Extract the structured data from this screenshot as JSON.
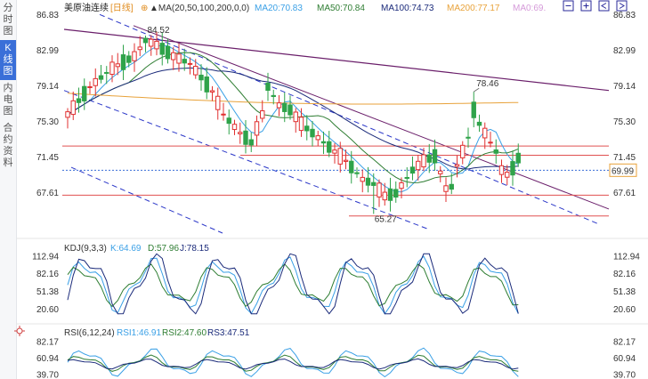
{
  "sidebar": {
    "tabs": [
      {
        "label": "分时图",
        "active": false
      },
      {
        "label": "K线图",
        "active": true
      },
      {
        "label": "内电图",
        "active": false
      },
      {
        "label": "合约资料",
        "active": false
      }
    ]
  },
  "main_legend": {
    "symbol": "美原油连续",
    "period": "[日线]",
    "ma_label": "MA(20,50,100,200,0,0)",
    "items": [
      {
        "text": "MA20:70.83",
        "color": "#3aa0e6"
      },
      {
        "text": "MA50:70.84",
        "color": "#2e7d32"
      },
      {
        "text": "MA100:74.73",
        "color": "#1a2a7a"
      },
      {
        "text": "MA200:77.17",
        "color": "#e8a23a"
      },
      {
        "text": "MA0:69.",
        "color": "#d59ad9"
      }
    ]
  },
  "kdj_legend": {
    "label": "KDJ(9,3,3)",
    "items": [
      {
        "text": "K:64.69",
        "color": "#3aa0e6"
      },
      {
        "text": "D:57.96",
        "color": "#2e7d32"
      },
      {
        "text": "J:78.15",
        "color": "#1a2a7a"
      }
    ]
  },
  "rsi_legend": {
    "label": "RSI(6,12,24)",
    "items": [
      {
        "text": "RSI1:46.91",
        "color": "#3aa0e6"
      },
      {
        "text": "RSI2:47.60",
        "color": "#2e7d32"
      },
      {
        "text": "RS3:47.51",
        "color": "#1a2a7a"
      }
    ]
  },
  "chart_data": [
    {
      "type": "candlestick",
      "title": "美原油连续 [日线]",
      "y_ticks": [
        "86.83",
        "82.99",
        "79.14",
        "75.30",
        "71.45",
        "67.61"
      ],
      "ylim": [
        63.2,
        86.83
      ],
      "current_price": "69.99",
      "annotations": {
        "high": "84.52",
        "peak": "78.46",
        "low": "65.27"
      },
      "horizontal_lines": [
        72.6,
        71.6,
        67.3,
        65.05
      ],
      "colors": {
        "up": "#e03030",
        "down": "#2fa34a",
        "current_line": "#3a6fd8",
        "hline": "#e05050"
      },
      "moving_averages": [
        {
          "name": "MA20",
          "value": 70.83
        },
        {
          "name": "MA50",
          "value": 70.84
        },
        {
          "name": "MA100",
          "value": 74.73
        },
        {
          "name": "MA200",
          "value": 77.17
        }
      ]
    },
    {
      "type": "line",
      "title": "KDJ(9,3,3)",
      "y_ticks": [
        "112.94",
        "82.16",
        "51.38",
        "20.60"
      ],
      "last": {
        "K": 64.69,
        "D": 57.96,
        "J": 78.15
      }
    },
    {
      "type": "line",
      "title": "RSI(6,12,24)",
      "y_ticks": [
        "82.17",
        "60.94",
        "39.70"
      ],
      "last": {
        "RSI1": 46.91,
        "RSI2": 47.6,
        "RSI3": 47.51
      }
    }
  ]
}
